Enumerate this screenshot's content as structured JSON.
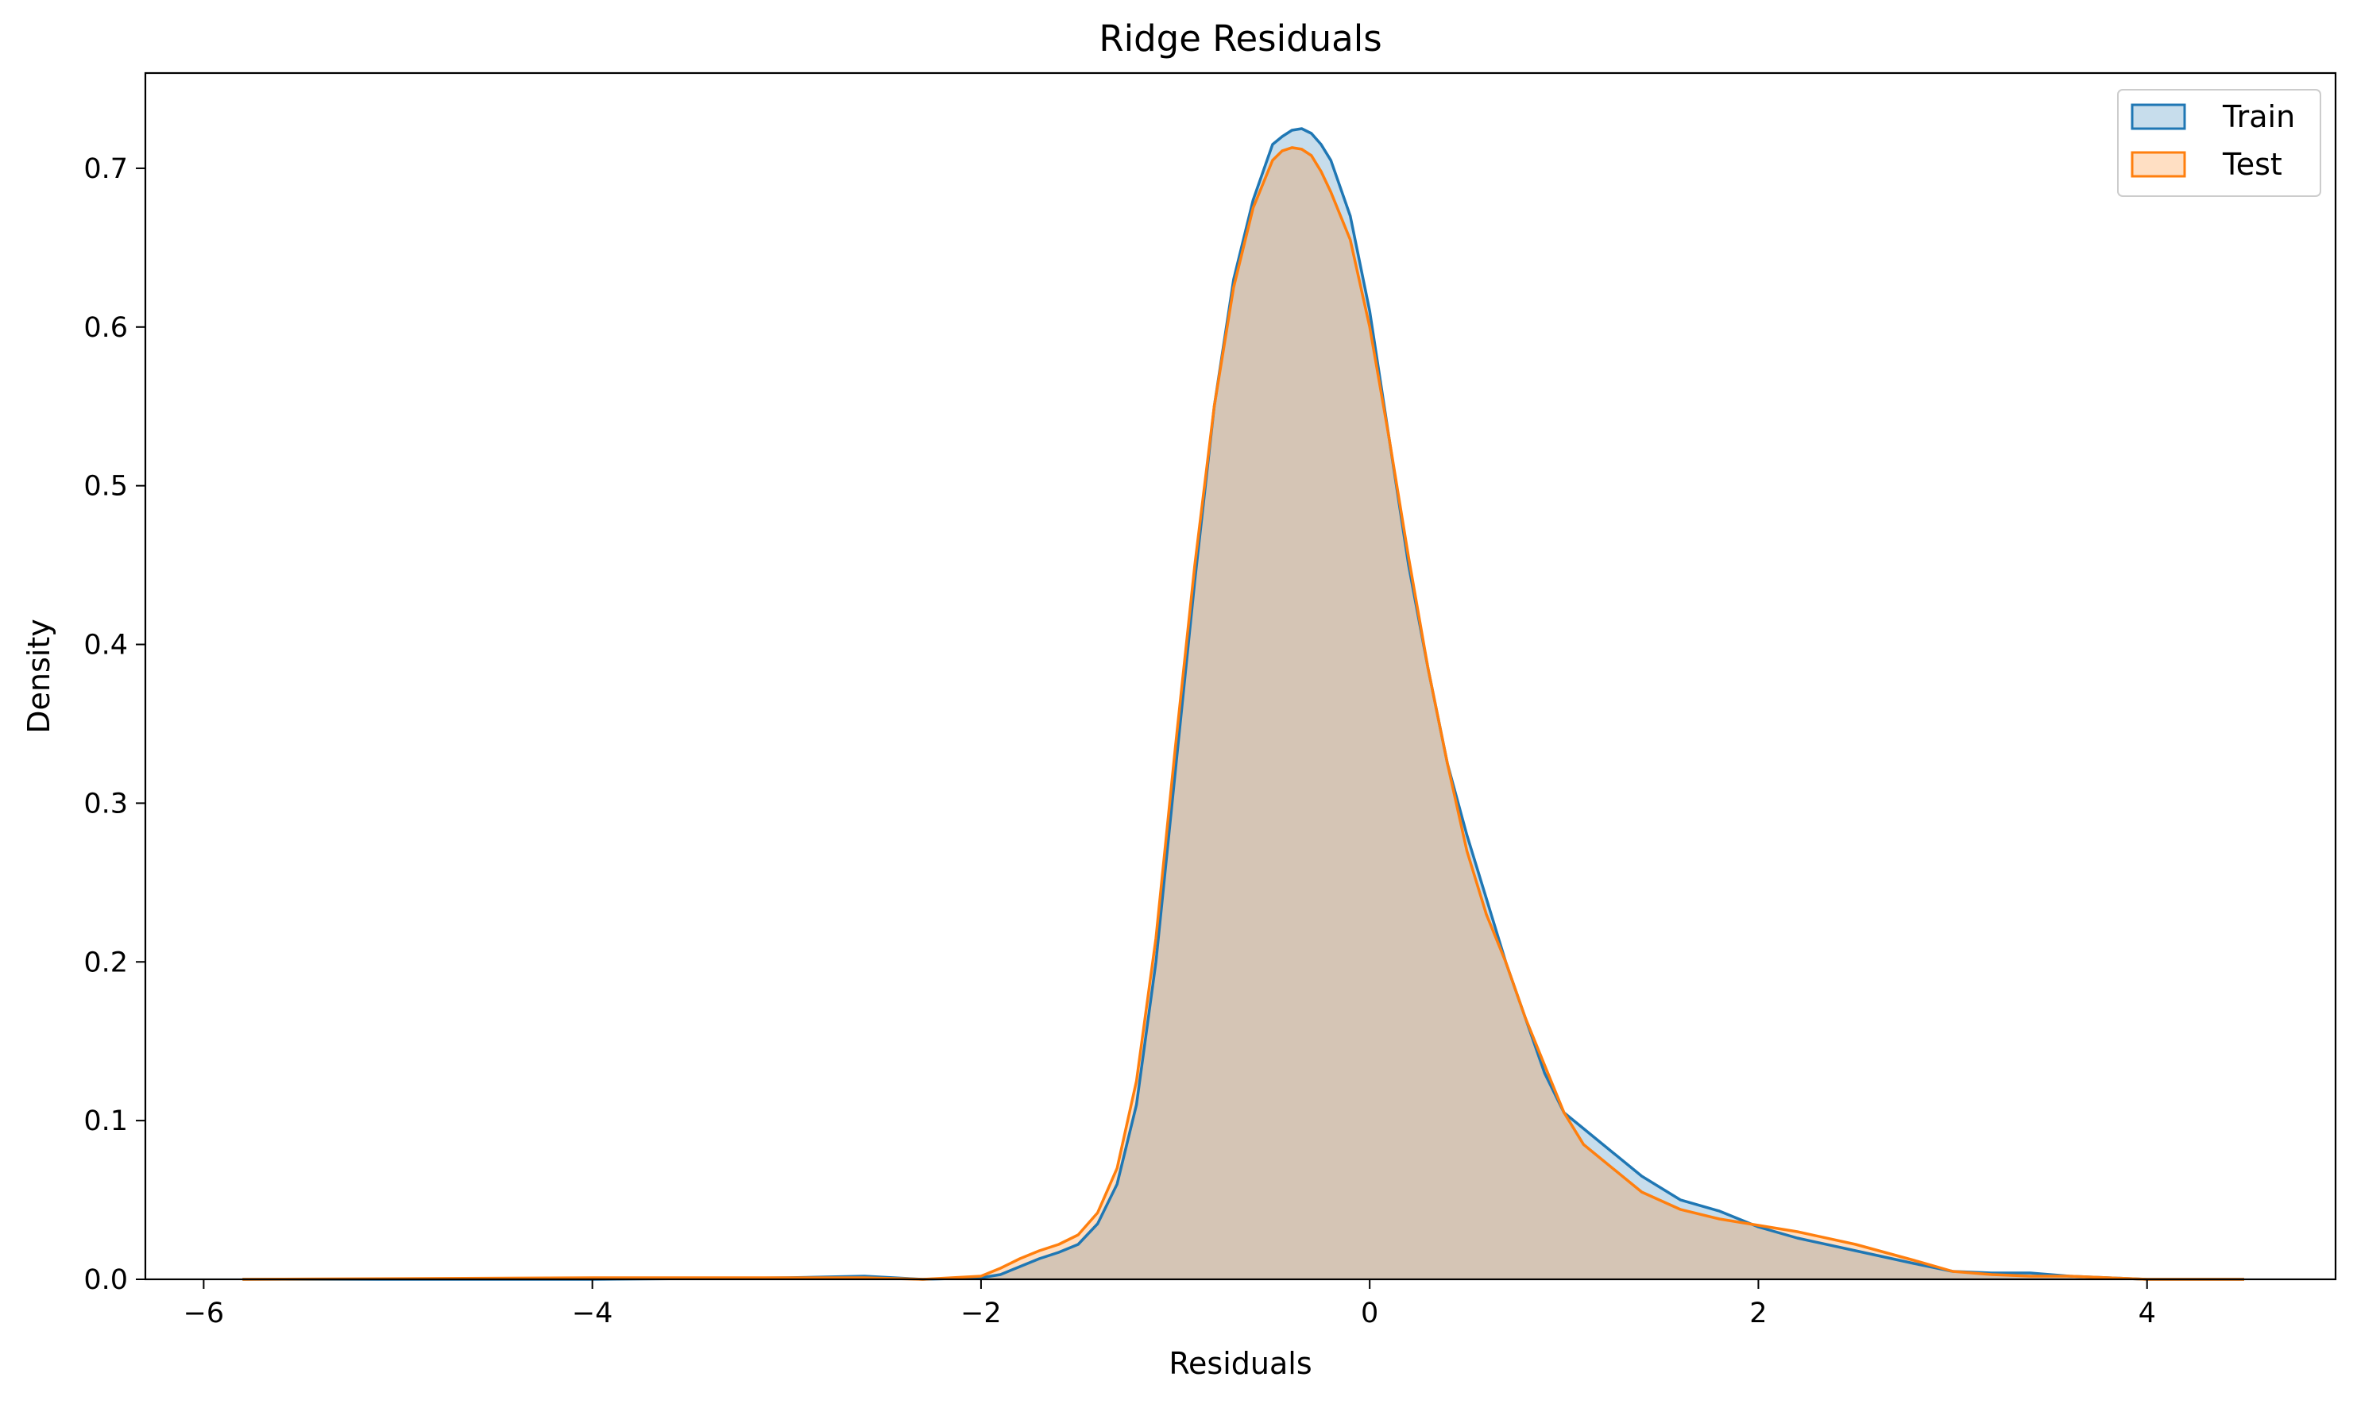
{
  "chart_data": {
    "type": "area",
    "title": "Ridge Residuals",
    "xlabel": "Residuals",
    "ylabel": "Density",
    "xlim": [
      -6.3,
      4.97
    ],
    "ylim": [
      0,
      0.76
    ],
    "xticks": [
      -6,
      -4,
      -2,
      0,
      2,
      4
    ],
    "xtick_labels": [
      "−6",
      "−4",
      "−2",
      "0",
      "2",
      "4"
    ],
    "yticks": [
      0.0,
      0.1,
      0.2,
      0.3,
      0.4,
      0.5,
      0.6,
      0.7
    ],
    "ytick_labels": [
      "0.0",
      "0.1",
      "0.2",
      "0.3",
      "0.4",
      "0.5",
      "0.6",
      "0.7"
    ],
    "grid": false,
    "legend_position": "top-right",
    "series": [
      {
        "name": "Train",
        "color": "#1f77b4",
        "x": [
          -5.8,
          -4.0,
          -3.0,
          -2.6,
          -2.3,
          -2.0,
          -1.9,
          -1.8,
          -1.7,
          -1.6,
          -1.5,
          -1.4,
          -1.3,
          -1.2,
          -1.1,
          -1.0,
          -0.9,
          -0.8,
          -0.7,
          -0.6,
          -0.5,
          -0.45,
          -0.4,
          -0.35,
          -0.3,
          -0.25,
          -0.2,
          -0.1,
          0.0,
          0.1,
          0.2,
          0.3,
          0.4,
          0.5,
          0.6,
          0.7,
          0.8,
          0.9,
          1.0,
          1.1,
          1.2,
          1.4,
          1.6,
          1.8,
          2.0,
          2.2,
          2.5,
          2.8,
          3.0,
          3.2,
          3.4,
          3.6,
          3.8,
          4.0,
          4.5
        ],
        "y": [
          0.0,
          0.0,
          0.001,
          0.002,
          0.0,
          0.001,
          0.003,
          0.008,
          0.013,
          0.017,
          0.022,
          0.035,
          0.06,
          0.11,
          0.2,
          0.32,
          0.44,
          0.55,
          0.63,
          0.68,
          0.715,
          0.72,
          0.724,
          0.725,
          0.722,
          0.715,
          0.705,
          0.67,
          0.61,
          0.53,
          0.45,
          0.385,
          0.325,
          0.28,
          0.24,
          0.2,
          0.165,
          0.13,
          0.105,
          0.095,
          0.085,
          0.065,
          0.05,
          0.043,
          0.033,
          0.026,
          0.018,
          0.01,
          0.005,
          0.004,
          0.004,
          0.002,
          0.001,
          0.0,
          0.0
        ]
      },
      {
        "name": "Test",
        "color": "#ff7f0e",
        "x": [
          -5.8,
          -4.0,
          -3.0,
          -2.6,
          -2.3,
          -2.0,
          -1.9,
          -1.8,
          -1.7,
          -1.6,
          -1.5,
          -1.4,
          -1.3,
          -1.2,
          -1.1,
          -1.0,
          -0.9,
          -0.8,
          -0.7,
          -0.6,
          -0.5,
          -0.45,
          -0.4,
          -0.35,
          -0.3,
          -0.25,
          -0.2,
          -0.1,
          0.0,
          0.1,
          0.2,
          0.3,
          0.4,
          0.5,
          0.6,
          0.7,
          0.8,
          0.9,
          1.0,
          1.1,
          1.2,
          1.4,
          1.6,
          1.8,
          2.0,
          2.2,
          2.5,
          2.8,
          3.0,
          3.2,
          3.4,
          3.6,
          3.8,
          4.0,
          4.5
        ],
        "y": [
          0.0,
          0.001,
          0.001,
          0.001,
          0.0,
          0.002,
          0.007,
          0.013,
          0.018,
          0.022,
          0.028,
          0.042,
          0.07,
          0.125,
          0.215,
          0.335,
          0.45,
          0.55,
          0.625,
          0.675,
          0.705,
          0.711,
          0.713,
          0.712,
          0.708,
          0.698,
          0.685,
          0.655,
          0.6,
          0.53,
          0.455,
          0.385,
          0.325,
          0.27,
          0.23,
          0.2,
          0.165,
          0.135,
          0.105,
          0.085,
          0.075,
          0.055,
          0.044,
          0.038,
          0.034,
          0.03,
          0.022,
          0.012,
          0.005,
          0.003,
          0.002,
          0.002,
          0.001,
          0.0,
          0.0
        ]
      }
    ]
  }
}
